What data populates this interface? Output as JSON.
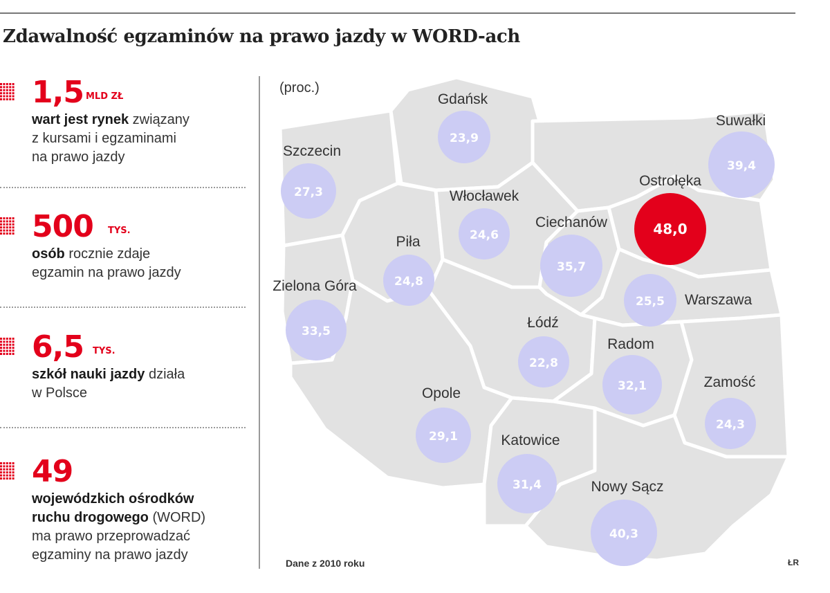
{
  "title": "Zdawalność egzaminów na prawo jazdy w WORD-ach",
  "stats": [
    {
      "value": "1,5",
      "unit": "MLD ZŁ",
      "bold": "wart jest rynek",
      "rest": " związany",
      "lines": [
        "z kursami i egzaminami",
        "na prawo jazdy"
      ]
    },
    {
      "value": "500",
      "unit": "TYS.",
      "bold": "osób",
      "rest": " rocznie zdaje",
      "lines": [
        "egzamin na prawo jazdy"
      ]
    },
    {
      "value": "6,5",
      "unit": "TYS.",
      "bold": "szkół nauki jazdy",
      "rest": " działa",
      "lines": [
        "w Polsce"
      ]
    },
    {
      "value": "49",
      "unit": "",
      "bold": "wojewódzkich ośrodków",
      "bold2": "ruchu drogowego",
      "rest": " (WORD)",
      "lines": [
        "ma prawo przeprowadzać",
        "egzaminy na prawo jazdy"
      ]
    }
  ],
  "map": {
    "unit_note": "(proc.)",
    "colors": {
      "region": "#e2e2e2",
      "border": "#ffffff",
      "bubble": "#ccccf4",
      "highlight": "#e3001b",
      "bubble_text": "#ffffff"
    },
    "cities": [
      {
        "name": "Gdańsk",
        "value": "23,9",
        "highlight": false
      },
      {
        "name": "Suwałki",
        "value": "39,4",
        "highlight": false
      },
      {
        "name": "Szczecin",
        "value": "27,3",
        "highlight": false
      },
      {
        "name": "Włocławek",
        "value": "24,6",
        "highlight": false
      },
      {
        "name": "Ostrołęka",
        "value": "48,0",
        "highlight": true
      },
      {
        "name": "Ciechanów",
        "value": "35,7",
        "highlight": false
      },
      {
        "name": "Piła",
        "value": "24,8",
        "highlight": false
      },
      {
        "name": "Zielona Góra",
        "value": "33,5",
        "highlight": false
      },
      {
        "name": "Warszawa",
        "value": "25,5",
        "highlight": false
      },
      {
        "name": "Łódź",
        "value": "22,8",
        "highlight": false
      },
      {
        "name": "Radom",
        "value": "32,1",
        "highlight": false
      },
      {
        "name": "Zamość",
        "value": "24,3",
        "highlight": false
      },
      {
        "name": "Opole",
        "value": "29,1",
        "highlight": false
      },
      {
        "name": "Katowice",
        "value": "31,4",
        "highlight": false
      },
      {
        "name": "Nowy Sącz",
        "value": "40,3",
        "highlight": false
      }
    ]
  },
  "source": "Dane z 2010 roku",
  "credit": "ŁR"
}
